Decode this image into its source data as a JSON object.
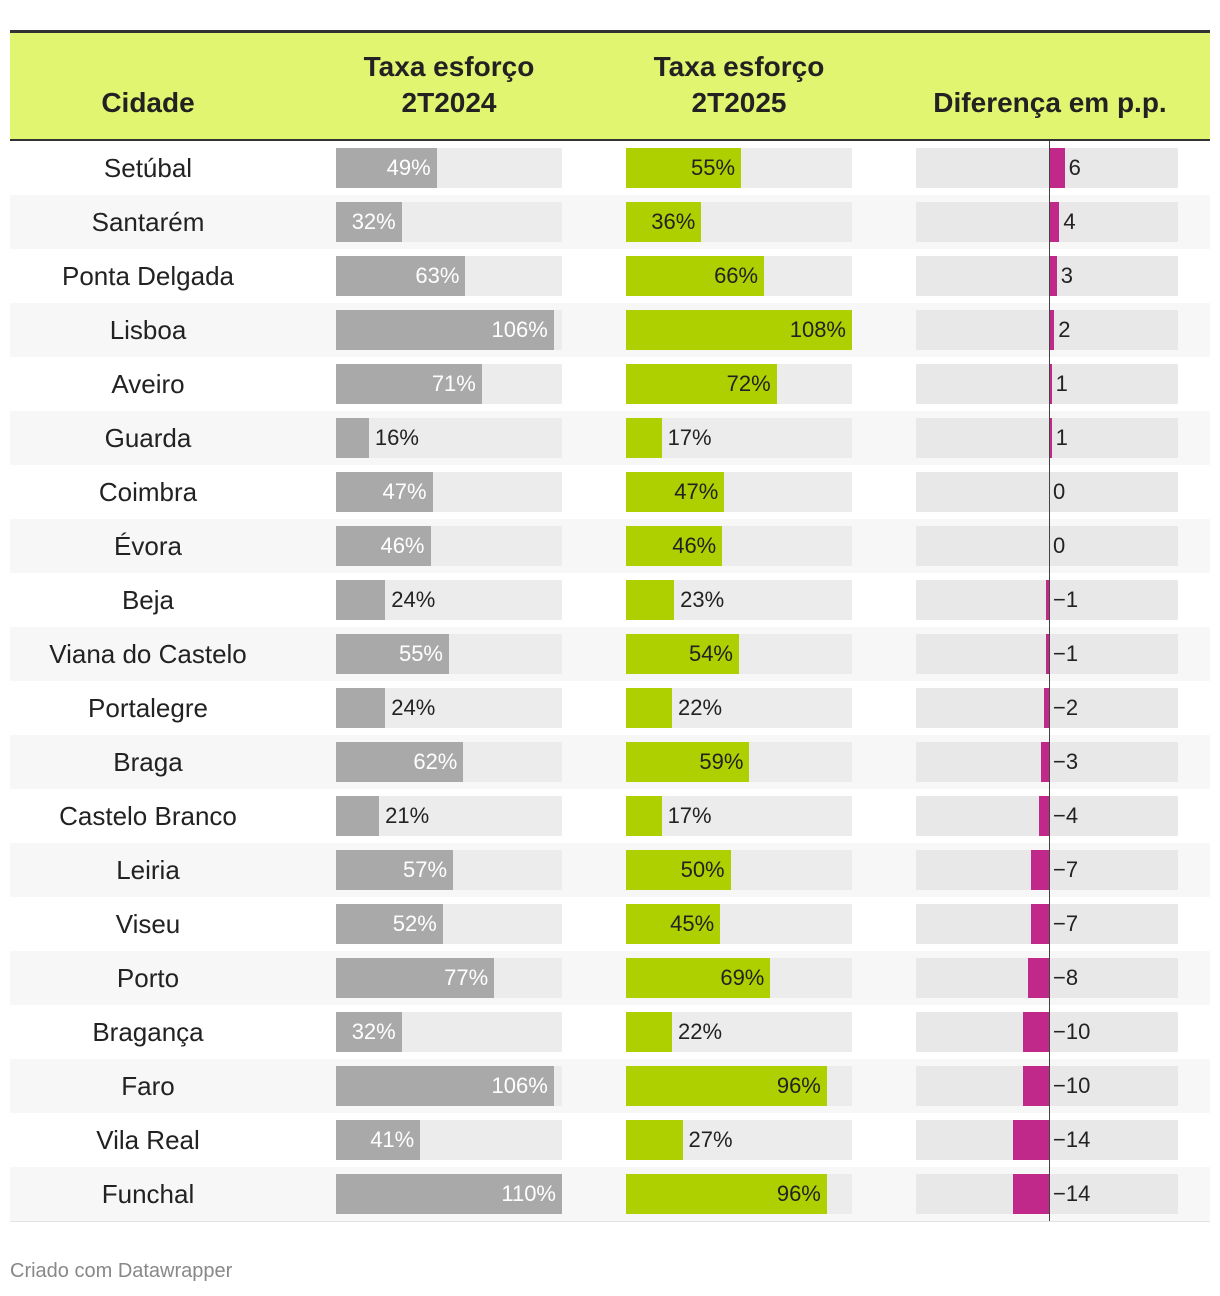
{
  "table": {
    "columns": [
      "Cidade",
      "Taxa esforço 2T2024",
      "Taxa esforço 2T2025",
      "Diferença em p.p."
    ],
    "rows": [
      [
        "Setúbal",
        {
          "value": 49,
          "label": "49%"
        },
        {
          "value": 55,
          "label": "55%"
        },
        6
      ],
      [
        "Santarém",
        {
          "value": 32,
          "label": "32%"
        },
        {
          "value": 36,
          "label": "36%"
        },
        4
      ],
      [
        "Ponta Delgada",
        {
          "value": 63,
          "label": "63%"
        },
        {
          "value": 66,
          "label": "66%"
        },
        3
      ],
      [
        "Lisboa",
        {
          "value": 106,
          "label": "106%"
        },
        {
          "value": 108,
          "label": "108%"
        },
        2
      ],
      [
        "Aveiro",
        {
          "value": 71,
          "label": "71%"
        },
        {
          "value": 72,
          "label": "72%"
        },
        1
      ],
      [
        "Guarda",
        {
          "value": 16,
          "label": "16%"
        },
        {
          "value": 17,
          "label": "17%"
        },
        1
      ],
      [
        "Coimbra",
        {
          "value": 47,
          "label": "47%"
        },
        {
          "value": 47,
          "label": "47%"
        },
        0
      ],
      [
        "Évora",
        {
          "value": 46,
          "label": "46%"
        },
        {
          "value": 46,
          "label": "46%"
        },
        0
      ],
      [
        "Beja",
        {
          "value": 24,
          "label": "24%"
        },
        {
          "value": 23,
          "label": "23%"
        },
        {
          "value": -1,
          "label": "−1"
        }
      ],
      [
        "Viana do Castelo",
        {
          "value": 55,
          "label": "55%"
        },
        {
          "value": 54,
          "label": "54%"
        },
        {
          "value": -1,
          "label": "−1"
        }
      ],
      [
        "Portalegre",
        {
          "value": 24,
          "label": "24%"
        },
        {
          "value": 22,
          "label": "22%"
        },
        {
          "value": -2,
          "label": "−2"
        }
      ],
      [
        "Braga",
        {
          "value": 62,
          "label": "62%"
        },
        {
          "value": 59,
          "label": "59%"
        },
        {
          "value": -3,
          "label": "−3"
        }
      ],
      [
        "Castelo Branco",
        {
          "value": 21,
          "label": "21%"
        },
        {
          "value": 17,
          "label": "17%"
        },
        {
          "value": -4,
          "label": "−4"
        }
      ],
      [
        "Leiria",
        {
          "value": 57,
          "label": "57%"
        },
        {
          "value": 50,
          "label": "50%"
        },
        {
          "value": -7,
          "label": "−7"
        }
      ],
      [
        "Viseu",
        {
          "value": 52,
          "label": "52%"
        },
        {
          "value": 45,
          "label": "45%"
        },
        {
          "value": -7,
          "label": "−7"
        }
      ],
      [
        "Porto",
        {
          "value": 77,
          "label": "77%"
        },
        {
          "value": 69,
          "label": "69%"
        },
        {
          "value": -8,
          "label": "−8"
        }
      ],
      [
        "Bragança",
        {
          "value": 32,
          "label": "32%"
        },
        {
          "value": 22,
          "label": "22%"
        },
        {
          "value": -10,
          "label": "−10"
        }
      ],
      [
        "Faro",
        {
          "value": 106,
          "label": "106%"
        },
        {
          "value": 96,
          "label": "96%"
        },
        {
          "value": -10,
          "label": "−10"
        }
      ],
      [
        "Vila Real",
        {
          "value": 41,
          "label": "41%"
        },
        {
          "value": 27,
          "label": "27%"
        },
        {
          "value": -14,
          "label": "−14"
        }
      ],
      [
        "Funchal",
        {
          "value": 110,
          "label": "110%"
        },
        {
          "value": 96,
          "label": "96%"
        },
        {
          "value": -14,
          "label": "−14"
        }
      ]
    ]
  },
  "footer": "Criado com Datawrapper"
}
